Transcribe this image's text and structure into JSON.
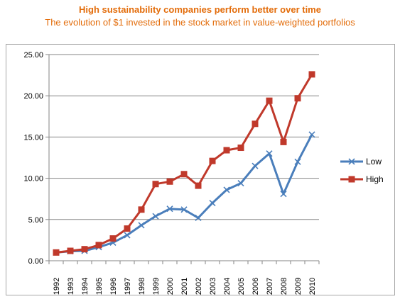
{
  "header": {
    "title": "High sustainability companies perform better over time",
    "subtitle": "The evolution of $1 invested in the stock market in value-weighted portfolios"
  },
  "colors": {
    "title": "#e36c0a",
    "low": "#4a7ebb",
    "high": "#c0392b",
    "grid": "#868686",
    "frame": "#a6a6a6"
  },
  "chart_data": {
    "type": "line",
    "title": "High sustainability companies perform better over time",
    "subtitle": "The evolution of $1 invested in the stock market in value-weighted portfolios",
    "xlabel": "",
    "ylabel": "",
    "x": [
      "1992",
      "1993",
      "1994",
      "1995",
      "1996",
      "1997",
      "1998",
      "1999",
      "2000",
      "2001",
      "2002",
      "2003",
      "2004",
      "2005",
      "2006",
      "2007",
      "2008",
      "2009",
      "2010"
    ],
    "ylim": [
      0,
      25
    ],
    "yticks": [
      "0.00",
      "5.00",
      "10.00",
      "15.00",
      "20.00",
      "25.00"
    ],
    "grid": true,
    "legend_position": "right",
    "series": [
      {
        "name": "Low",
        "marker": "x",
        "color": "#4a7ebb",
        "values": [
          1.0,
          1.15,
          1.2,
          1.65,
          2.2,
          3.1,
          4.3,
          5.4,
          6.3,
          6.2,
          5.2,
          7.0,
          8.6,
          9.4,
          11.5,
          13.0,
          8.1,
          12.0,
          15.3
        ]
      },
      {
        "name": "High",
        "marker": "square",
        "color": "#c0392b",
        "values": [
          1.0,
          1.2,
          1.4,
          1.9,
          2.7,
          3.9,
          6.2,
          9.3,
          9.6,
          10.5,
          9.1,
          12.1,
          13.4,
          13.7,
          16.6,
          19.4,
          14.4,
          19.7,
          22.6
        ]
      }
    ]
  }
}
